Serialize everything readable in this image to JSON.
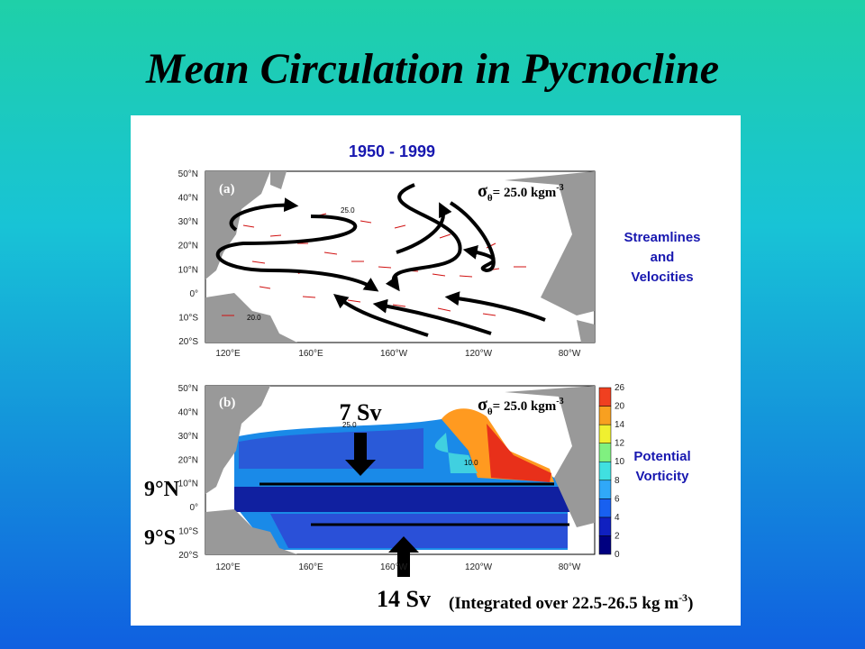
{
  "title": "Mean Circulation in Pycnocline",
  "figure": {
    "period": "1950 - 1999",
    "lat_labels": [
      "50°N",
      "40°N",
      "30°N",
      "20°N",
      "10°N",
      "0°",
      "10°S",
      "20°S"
    ],
    "lon_labels": [
      "120°E",
      "160°E",
      "160°W",
      "120°W",
      "80°W"
    ],
    "density": {
      "symbol": "σ",
      "subscript": "θ",
      "text": "= 25.0 kgm",
      "exponent": "-3"
    },
    "panels": [
      {
        "label": "(a)",
        "legend": [
          "Streamlines",
          "and",
          "Velocities"
        ],
        "contours": [
          "25.0",
          "20.0"
        ]
      },
      {
        "label": "(b)",
        "legend": [
          "Potential",
          "Vorticity"
        ],
        "contours": [
          "25.0",
          "10.0"
        ],
        "colorbar": [
          0,
          2,
          4,
          6,
          8,
          10,
          12,
          14,
          20,
          26
        ]
      }
    ]
  },
  "annotations": {
    "north_transport": "7 Sv",
    "south_transport": "14 Sv",
    "north_section": "9°N",
    "south_section": "9°S",
    "note": {
      "text": "(Integrated over 22.5-26.5 kg m",
      "exponent": "-3",
      "close": ")"
    }
  }
}
